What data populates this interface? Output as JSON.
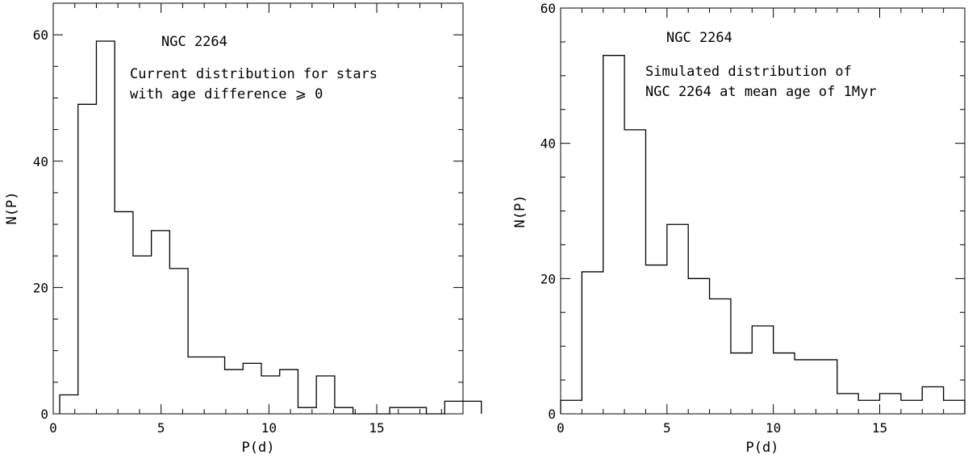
{
  "chart_data": [
    {
      "type": "bar",
      "style": "step-histogram",
      "xlabel": "P(d)",
      "ylabel": "N(P)",
      "xlim": [
        0,
        19
      ],
      "ylim": [
        0,
        65
      ],
      "xticks_major": [
        0,
        5,
        10,
        15
      ],
      "yticks_major": [
        0,
        20,
        40,
        60
      ],
      "bin_width": 0.85,
      "bin_edges_start": 0.3,
      "values": [
        3,
        49,
        59,
        32,
        25,
        29,
        23,
        9,
        9,
        7,
        8,
        6,
        7,
        1,
        6,
        1,
        0,
        0,
        1,
        1,
        0,
        2,
        2
      ],
      "annotations": [
        "NGC 2264",
        "Current distribution for stars",
        "with age difference ⩾ 0"
      ]
    },
    {
      "type": "bar",
      "style": "step-histogram",
      "xlabel": "P(d)",
      "ylabel": "N(P)",
      "xlim": [
        0,
        19
      ],
      "ylim": [
        0,
        60
      ],
      "xticks_major": [
        0,
        5,
        10,
        15
      ],
      "yticks_major": [
        0,
        20,
        40,
        60
      ],
      "bin_width": 1.0,
      "bin_edges_start": 0.0,
      "values": [
        2,
        21,
        53,
        42,
        22,
        28,
        20,
        17,
        9,
        13,
        9,
        8,
        8,
        3,
        2,
        3,
        2,
        4,
        2
      ],
      "annotations": [
        "NGC 2264",
        "Simulated distribution of",
        "NGC 2264 at mean age of 1Myr"
      ]
    }
  ]
}
